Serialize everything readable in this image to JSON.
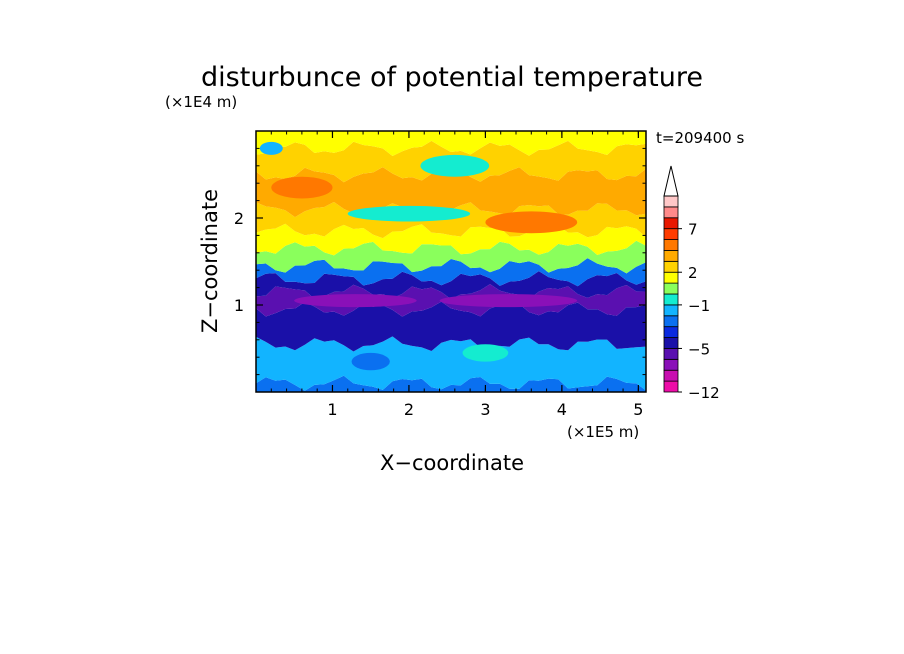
{
  "chart_data": {
    "type": "heatmap",
    "title": "disturbunce of potential temperature",
    "time_label": "t=209400 s",
    "xlabel": "X−coordinate",
    "ylabel": "Z−coordinate",
    "x_unit": "(×1E5 m)",
    "y_unit": "(×1E4 m)",
    "xlim": [
      0,
      5.1
    ],
    "ylim": [
      0,
      3.0
    ],
    "x_ticks": [
      "1",
      "2",
      "3",
      "4",
      "5"
    ],
    "y_ticks": [
      "1",
      "2"
    ],
    "colorbar": {
      "levels": [
        -12,
        -11,
        -8,
        -6,
        -5,
        -4,
        -3,
        -2,
        -1,
        0,
        1,
        2,
        3,
        4,
        6,
        7,
        8,
        9,
        10
      ],
      "tick_labels": [
        "7",
        "2",
        "−1",
        "−5",
        "−12"
      ],
      "tick_values": [
        7,
        2,
        -1,
        -5,
        -12
      ],
      "extend": "max",
      "colors": [
        "#ee0ca8",
        "#c80eb0",
        "#8a10b8",
        "#5a10b0",
        "#1a10a8",
        "#0a2ae0",
        "#0a70f0",
        "#12b4ff",
        "#14ecd0",
        "#8aff5c",
        "#ffff00",
        "#ffd200",
        "#ffaa00",
        "#ff7800",
        "#ff3c00",
        "#e81800",
        "#ff8a8a",
        "#ffc8c8"
      ]
    },
    "bands": [
      {
        "z": [
          0.0,
          0.1
        ],
        "value": -3
      },
      {
        "z": [
          0.1,
          0.55
        ],
        "value": -1.5
      },
      {
        "z": [
          0.55,
          0.95
        ],
        "value": -4.5
      },
      {
        "z": [
          0.95,
          1.15
        ],
        "value": -5.5
      },
      {
        "z": [
          1.15,
          1.3
        ],
        "value": -4.5
      },
      {
        "z": [
          1.3,
          1.45
        ],
        "value": -2.5
      },
      {
        "z": [
          1.45,
          1.65
        ],
        "value": 0.5
      },
      {
        "z": [
          1.65,
          1.85
        ],
        "value": 1.5
      },
      {
        "z": [
          1.85,
          2.1
        ],
        "value": 2.5
      },
      {
        "z": [
          2.1,
          2.5
        ],
        "value": 3.5
      },
      {
        "z": [
          2.5,
          2.8
        ],
        "value": 2.5
      },
      {
        "z": [
          2.8,
          3.0
        ],
        "value": 1.5
      }
    ],
    "features": [
      {
        "x": 0.6,
        "z": 2.35,
        "w": 0.8,
        "h": 0.25,
        "value": 5
      },
      {
        "x": 3.6,
        "z": 1.95,
        "w": 1.2,
        "h": 0.25,
        "value": 5
      },
      {
        "x": 2.0,
        "z": 2.05,
        "w": 1.6,
        "h": 0.18,
        "value": -0.5
      },
      {
        "x": 0.2,
        "z": 2.8,
        "w": 0.3,
        "h": 0.15,
        "value": -1.5
      },
      {
        "x": 2.6,
        "z": 2.6,
        "w": 0.9,
        "h": 0.25,
        "value": -0.5
      },
      {
        "x": 1.3,
        "z": 1.05,
        "w": 1.6,
        "h": 0.15,
        "value": -6.5
      },
      {
        "x": 3.3,
        "z": 1.05,
        "w": 1.8,
        "h": 0.15,
        "value": -6.5
      },
      {
        "x": 3.0,
        "z": 0.45,
        "w": 0.6,
        "h": 0.2,
        "value": -0.5
      },
      {
        "x": 1.5,
        "z": 0.35,
        "w": 0.5,
        "h": 0.2,
        "value": -3
      }
    ]
  }
}
